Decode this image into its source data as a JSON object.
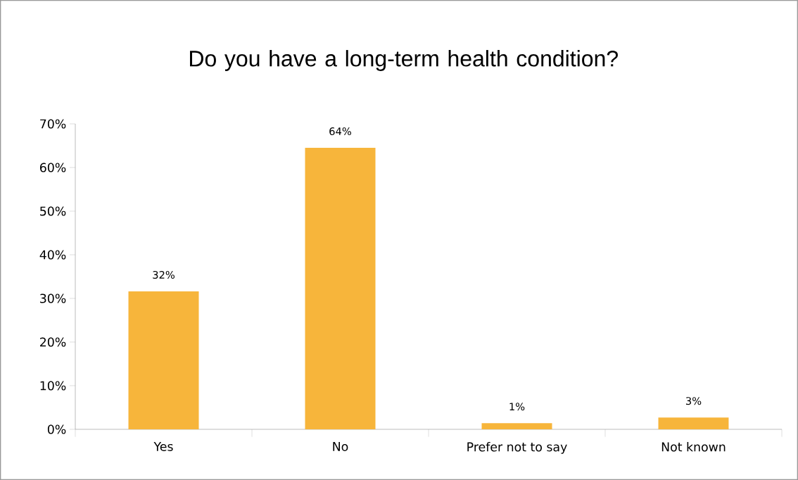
{
  "chart_data": {
    "type": "bar",
    "title": "Do you have a long-term health condition?",
    "categories": [
      "Yes",
      "No",
      "Prefer not to say",
      "Not known"
    ],
    "values": [
      31.6,
      64.5,
      1.4,
      2.7
    ],
    "value_labels": [
      "32%",
      "64%",
      "1%",
      "3%"
    ],
    "color": "#f7b53b",
    "ylim": [
      0,
      70
    ],
    "yticks": [
      {
        "value": 0,
        "label": "0%"
      },
      {
        "value": 10,
        "label": "10%"
      },
      {
        "value": 20,
        "label": "20%"
      },
      {
        "value": 30,
        "label": "30%"
      },
      {
        "value": 40,
        "label": "40%"
      },
      {
        "value": 50,
        "label": "50%"
      },
      {
        "value": 60,
        "label": "60%"
      },
      {
        "value": 70,
        "label": "70%"
      }
    ],
    "grid": false
  }
}
